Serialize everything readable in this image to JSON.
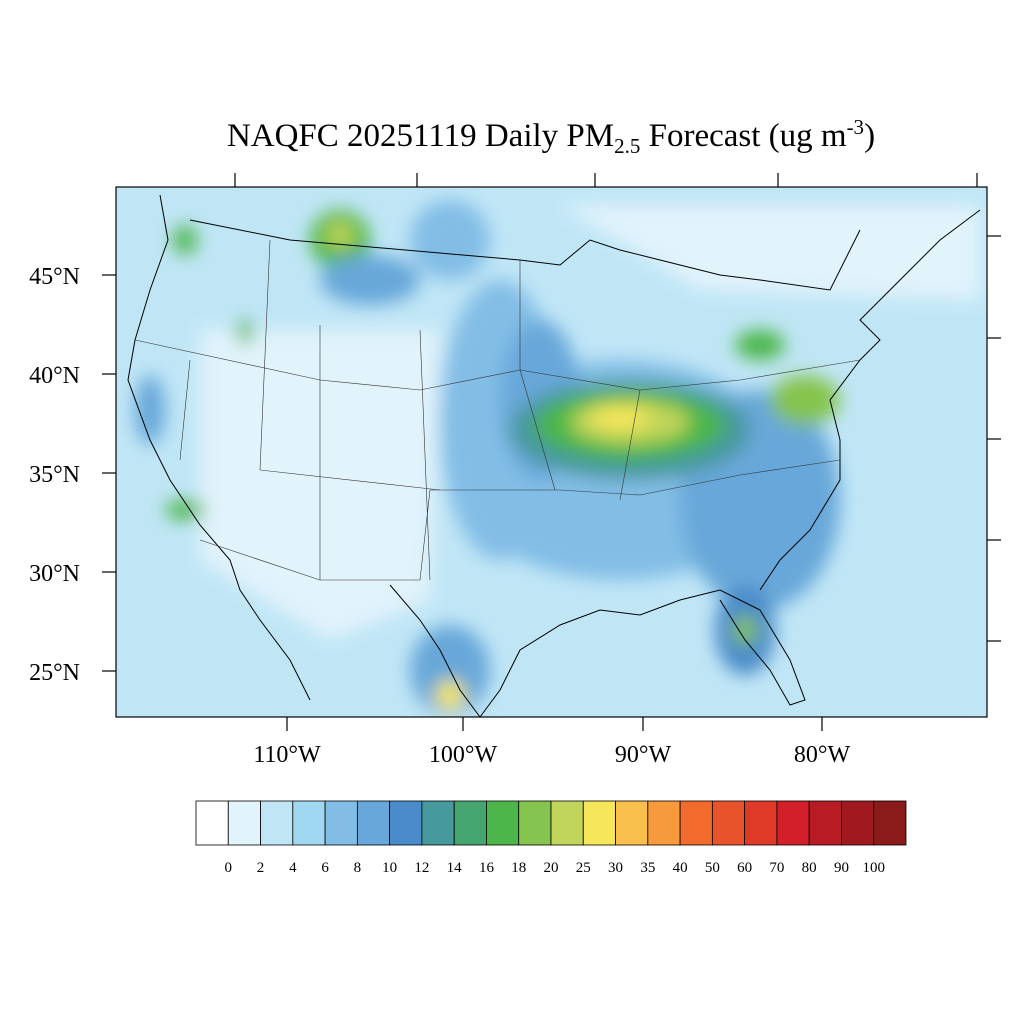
{
  "title": {
    "parts": [
      "NAQFC 20251119 Daily PM",
      "2.5",
      " Forecast (ug m",
      "-3",
      ")"
    ]
  },
  "lat_labels": [
    "45°N",
    "40°N",
    "35°N",
    "30°N",
    "25°N"
  ],
  "lon_labels": [
    "110°W",
    "100°W",
    "90°W",
    "80°W"
  ],
  "colorbar": {
    "colors": [
      "#ffffff",
      "#e1f3fb",
      "#c0e6f6",
      "#a0d8f2",
      "#82bde6",
      "#67a7d9",
      "#4a8bc9",
      "#46999c",
      "#45a56f",
      "#4cb64a",
      "#85c44e",
      "#c0d55a",
      "#f5e65a",
      "#f8bf4d",
      "#f79a3c",
      "#f36b2c",
      "#e8532c",
      "#de3a27",
      "#d21f2a",
      "#b71c25",
      "#a0191f",
      "#8b1a1a"
    ],
    "labels": [
      0,
      2,
      4,
      6,
      8,
      10,
      12,
      14,
      16,
      18,
      20,
      25,
      30,
      35,
      40,
      50,
      60,
      70,
      80,
      90,
      100
    ]
  }
}
